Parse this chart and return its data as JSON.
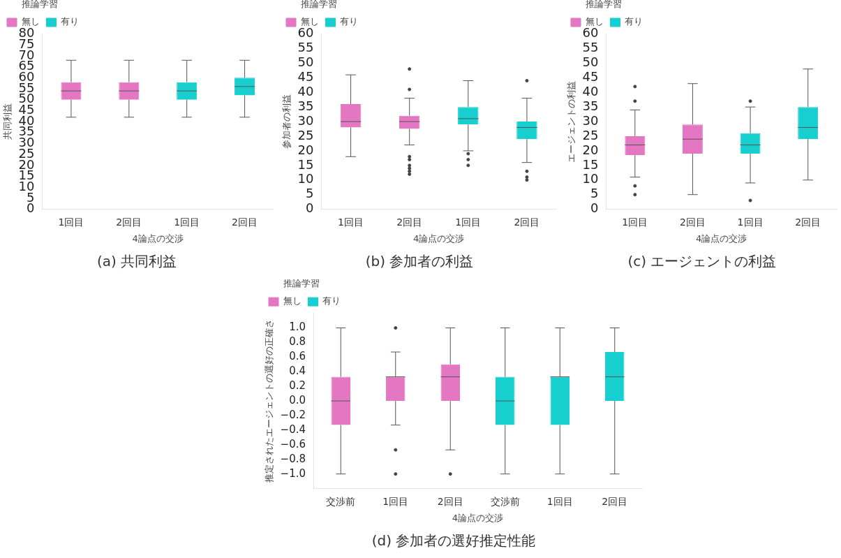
{
  "chart_data": [
    {
      "type": "box",
      "title": "(a) 共同利益",
      "xlabel": "4論点の交渉",
      "ylabel": "共同利益",
      "legend_title": "推論学習",
      "legend": "top left",
      "categories": [
        "1回目",
        "2回目",
        "1回目",
        "2回目"
      ],
      "ylim": [
        0,
        80
      ],
      "yticks": [
        0,
        5,
        10,
        15,
        20,
        25,
        30,
        35,
        40,
        45,
        50,
        55,
        60,
        65,
        70,
        75,
        80
      ],
      "series": [
        {
          "name": "無し",
          "color": "#e377c2",
          "boxes": [
            {
              "low": 42,
              "q1": 50,
              "median": 54,
              "q3": 58,
              "high": 68
            },
            {
              "low": 42,
              "q1": 50,
              "median": 54,
              "q3": 58,
              "high": 68
            },
            null,
            null
          ]
        },
        {
          "name": "有り",
          "color": "#17cfcf",
          "boxes": [
            null,
            null,
            {
              "low": 42,
              "q1": 50,
              "median": 54,
              "q3": 58,
              "high": 68
            },
            {
              "low": 42,
              "q1": 52,
              "median": 56,
              "q3": 60,
              "high": 68
            }
          ]
        }
      ]
    },
    {
      "type": "box",
      "title": "(b) 参加者の利益",
      "xlabel": "4論点の交渉",
      "ylabel": "参加者の利益",
      "legend_title": "推論学習",
      "legend": "top left",
      "categories": [
        "1回目",
        "2回目",
        "1回目",
        "2回目"
      ],
      "ylim": [
        0,
        60
      ],
      "yticks": [
        0,
        5,
        10,
        15,
        20,
        25,
        30,
        35,
        40,
        45,
        50,
        55,
        60
      ],
      "series": [
        {
          "name": "無し",
          "color": "#e377c2",
          "boxes": [
            {
              "low": 18,
              "q1": 28,
              "median": 30,
              "q3": 36,
              "high": 46
            },
            {
              "low": 22,
              "q1": 27.5,
              "median": 30,
              "q3": 32,
              "high": 38,
              "outliers": [
                48,
                41,
                18,
                17,
                15,
                14,
                13,
                12
              ]
            },
            null,
            null
          ]
        },
        {
          "name": "有り",
          "color": "#17cfcf",
          "boxes": [
            null,
            null,
            {
              "low": 20,
              "q1": 29,
              "median": 31,
              "q3": 35,
              "high": 44,
              "outliers": [
                19,
                17,
                15
              ]
            },
            {
              "low": 16,
              "q1": 24,
              "median": 28,
              "q3": 30,
              "high": 38,
              "outliers": [
                44,
                13,
                11,
                10
              ]
            }
          ]
        }
      ]
    },
    {
      "type": "box",
      "title": "(c) エージェントの利益",
      "xlabel": "4論点の交渉",
      "ylabel": "エージェントの利益",
      "legend_title": "推論学習",
      "legend": "top left",
      "categories": [
        "1回目",
        "2回目",
        "1回目",
        "2回目"
      ],
      "ylim": [
        0,
        60
      ],
      "yticks": [
        0,
        5,
        10,
        15,
        20,
        25,
        30,
        35,
        40,
        45,
        50,
        55,
        60
      ],
      "series": [
        {
          "name": "無し",
          "color": "#e377c2",
          "boxes": [
            {
              "low": 11,
              "q1": 18.5,
              "median": 22,
              "q3": 25,
              "high": 34,
              "outliers": [
                42,
                37,
                8,
                5
              ]
            },
            {
              "low": 5,
              "q1": 19,
              "median": 24,
              "q3": 29,
              "high": 43
            },
            null,
            null
          ]
        },
        {
          "name": "有り",
          "color": "#17cfcf",
          "boxes": [
            null,
            null,
            {
              "low": 9,
              "q1": 19,
              "median": 22,
              "q3": 26,
              "high": 35,
              "outliers": [
                37,
                3
              ]
            },
            {
              "low": 10,
              "q1": 24,
              "median": 28,
              "q3": 35,
              "high": 48
            }
          ]
        }
      ]
    },
    {
      "type": "box",
      "title": "(d) 参加者の選好推定性能",
      "xlabel": "4論点の交渉",
      "ylabel": "推定されたエージェントの選好の正確さ",
      "legend_title": "推論学習",
      "legend": "top left",
      "categories": [
        "交渉前",
        "1回目",
        "2回目",
        "交渉前",
        "1回目",
        "2回目"
      ],
      "ylim": [
        -1.2,
        1.2
      ],
      "yticks": [
        {
          "value": -1,
          "label": "−1.0"
        },
        {
          "value": -0.8,
          "label": "−0.8"
        },
        {
          "value": -0.6,
          "label": "−0.6"
        },
        {
          "value": -0.4,
          "label": "−0.4"
        },
        {
          "value": -0.2,
          "label": "−0.2"
        },
        {
          "value": 0,
          "label": "0.0"
        },
        {
          "value": 0.2,
          "label": "0.2"
        },
        {
          "value": 0.4,
          "label": "0.4"
        },
        {
          "value": 0.6,
          "label": "0.6"
        },
        {
          "value": 0.8,
          "label": "0.8"
        },
        {
          "value": 1,
          "label": "1.0"
        }
      ],
      "series": [
        {
          "name": "無し",
          "color": "#e377c2",
          "boxes": [
            {
              "low": -1,
              "q1": -0.33,
              "median": 0,
              "q3": 0.33,
              "high": 1
            },
            {
              "low": -0.33,
              "q1": 0,
              "median": 0.33,
              "q3": 0.33,
              "high": 0.67,
              "outliers": [
                1,
                -0.67,
                -1
              ]
            },
            {
              "low": -0.67,
              "q1": 0,
              "median": 0.33,
              "q3": 0.5,
              "high": 1,
              "outliers": [
                -1
              ]
            },
            null,
            null,
            null
          ]
        },
        {
          "name": "有り",
          "color": "#17cfcf",
          "boxes": [
            null,
            null,
            null,
            {
              "low": -1,
              "q1": -0.33,
              "median": 0,
              "q3": 0.33,
              "high": 1
            },
            {
              "low": -1,
              "q1": -0.33,
              "median": 0.33,
              "q3": 0.33,
              "high": 1
            },
            {
              "low": -1,
              "q1": 0,
              "median": 0.33,
              "q3": 0.67,
              "high": 1
            }
          ]
        }
      ]
    }
  ]
}
